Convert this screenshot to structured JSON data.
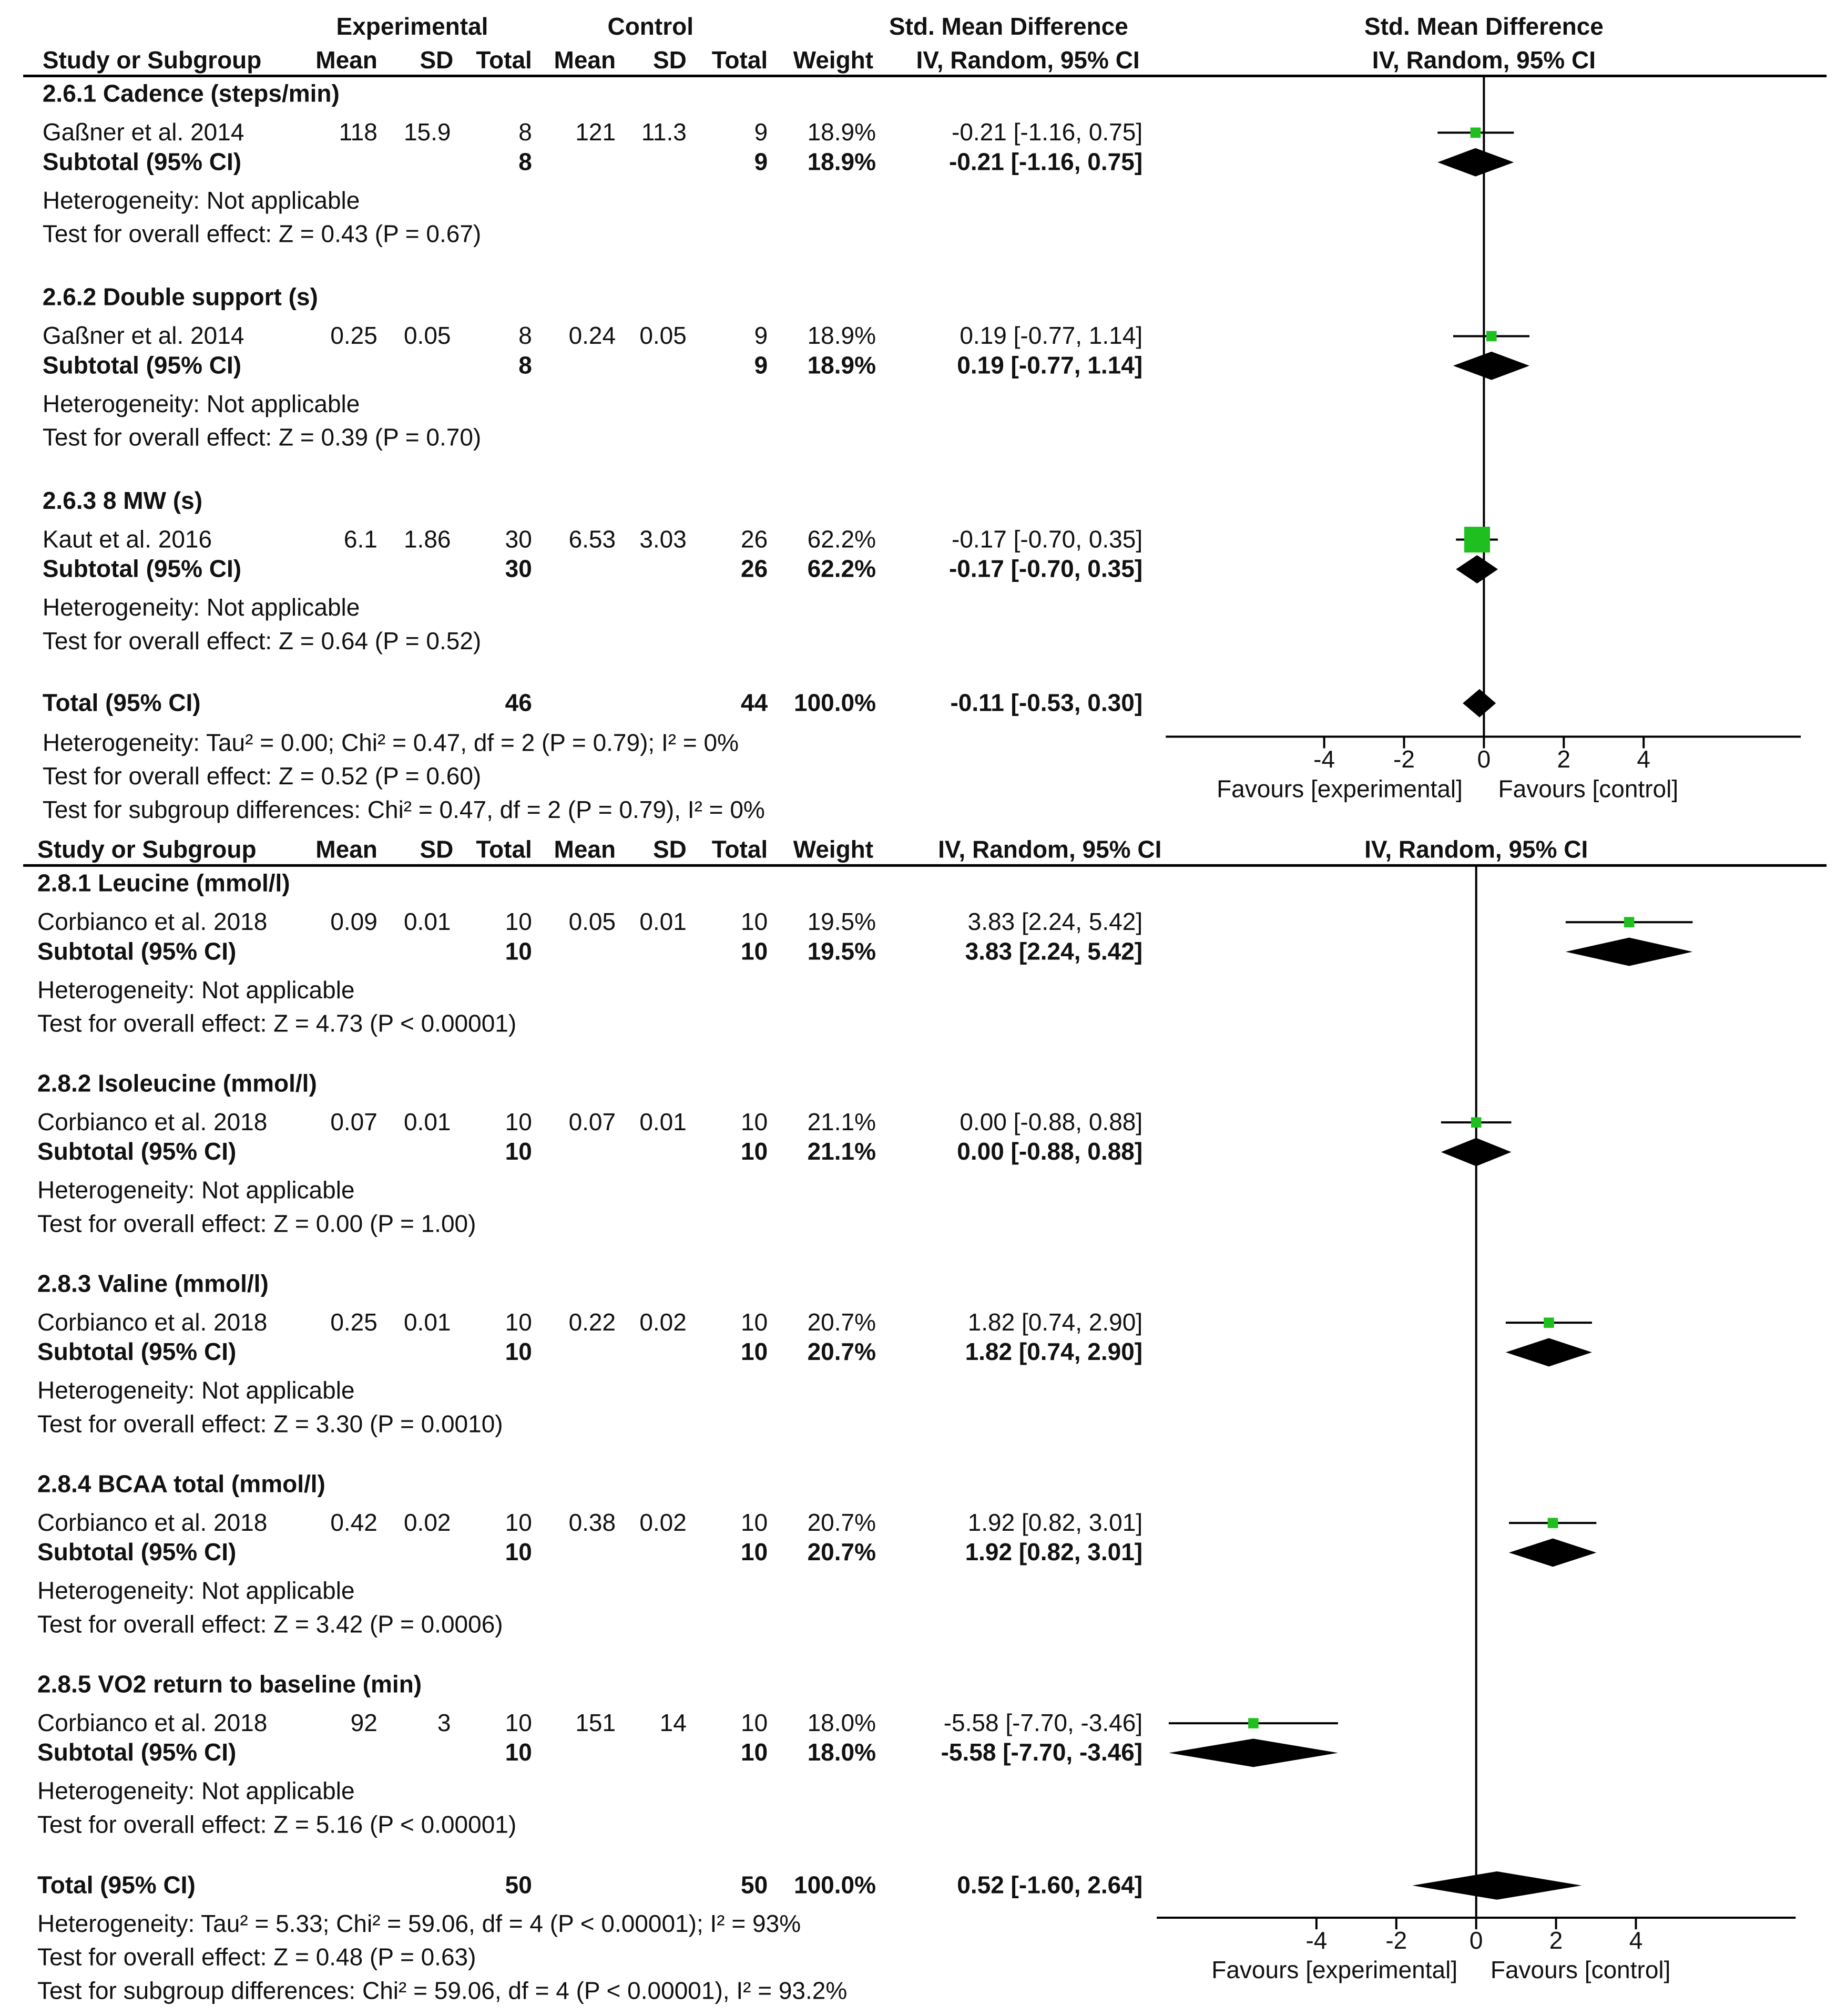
{
  "chart_data": {
    "type": "forest",
    "colors": {
      "study_marker": "#1fbf1f",
      "diamond": "#000000",
      "line": "#000000"
    },
    "panels": [
      {
        "id": "top",
        "super_headers": {
          "experimental": "Experimental",
          "control": "Control",
          "smd": "Std. Mean Difference",
          "plot": "Std. Mean Difference"
        },
        "col_headers": {
          "study": "Study or Subgroup",
          "exp_mean": "Mean",
          "exp_sd": "SD",
          "exp_total": "Total",
          "ctl_mean": "Mean",
          "ctl_sd": "SD",
          "ctl_total": "Total",
          "weight": "Weight",
          "ci": "IV, Random, 95% CI",
          "plot": "IV, Random, 95% CI"
        },
        "subgroups": [
          {
            "title": "2.6.1 Cadence (steps/min)",
            "study": {
              "name": "Gaßner et al. 2014",
              "exp_mean": "118",
              "exp_sd": "15.9",
              "exp_total": "8",
              "ctl_mean": "121",
              "ctl_sd": "11.3",
              "ctl_total": "9",
              "weight": "18.9%",
              "ci_text": "-0.21 [-1.16, 0.75]",
              "est": -0.21,
              "lo": -1.16,
              "hi": 0.75,
              "w": 18.9
            },
            "subtotal": {
              "label": "Subtotal (95% CI)",
              "exp_total": "8",
              "ctl_total": "9",
              "weight": "18.9%",
              "ci_text": "-0.21 [-1.16, 0.75]",
              "est": -0.21,
              "lo": -1.16,
              "hi": 0.75
            },
            "heterogeneity": "Heterogeneity: Not applicable",
            "overall": "Test for overall effect: Z = 0.43 (P = 0.67)"
          },
          {
            "title": "2.6.2 Double support (s)",
            "study": {
              "name": "Gaßner et al. 2014",
              "exp_mean": "0.25",
              "exp_sd": "0.05",
              "exp_total": "8",
              "ctl_mean": "0.24",
              "ctl_sd": "0.05",
              "ctl_total": "9",
              "weight": "18.9%",
              "ci_text": "0.19 [-0.77, 1.14]",
              "est": 0.19,
              "lo": -0.77,
              "hi": 1.14,
              "w": 18.9
            },
            "subtotal": {
              "label": "Subtotal (95% CI)",
              "exp_total": "8",
              "ctl_total": "9",
              "weight": "18.9%",
              "ci_text": "0.19 [-0.77, 1.14]",
              "est": 0.19,
              "lo": -0.77,
              "hi": 1.14
            },
            "heterogeneity": "Heterogeneity: Not applicable",
            "overall": "Test for overall effect: Z = 0.39 (P = 0.70)"
          },
          {
            "title": "2.6.3 8 MW (s)",
            "study": {
              "name": "Kaut et al. 2016",
              "exp_mean": "6.1",
              "exp_sd": "1.86",
              "exp_total": "30",
              "ctl_mean": "6.53",
              "ctl_sd": "3.03",
              "ctl_total": "26",
              "weight": "62.2%",
              "ci_text": "-0.17 [-0.70, 0.35]",
              "est": -0.17,
              "lo": -0.7,
              "hi": 0.35,
              "w": 62.2
            },
            "subtotal": {
              "label": "Subtotal (95% CI)",
              "exp_total": "30",
              "ctl_total": "26",
              "weight": "62.2%",
              "ci_text": "-0.17 [-0.70, 0.35]",
              "est": -0.17,
              "lo": -0.7,
              "hi": 0.35
            },
            "heterogeneity": "Heterogeneity: Not applicable",
            "overall": "Test for overall effect: Z = 0.64 (P = 0.52)"
          }
        ],
        "total": {
          "label": "Total (95% CI)",
          "exp_total": "46",
          "ctl_total": "44",
          "weight": "100.0%",
          "ci_text": "-0.11 [-0.53, 0.30]",
          "est": -0.11,
          "lo": -0.53,
          "hi": 0.3
        },
        "footer": [
          "Heterogeneity: Tau² = 0.00; Chi² = 0.47, df = 2 (P = 0.79); I² = 0%",
          "Test for overall effect: Z = 0.52 (P = 0.60)",
          "Test for subgroup differences: Chi² = 0.47, df = 2 (P = 0.79), I² = 0%"
        ],
        "axis": {
          "ticks": [
            -4,
            -2,
            0,
            2,
            4
          ],
          "tick_labels": [
            "-4",
            "-2",
            "0",
            "2",
            "4"
          ],
          "favours_left": "Favours [experimental]",
          "favours_right": "Favours [control]"
        }
      },
      {
        "id": "bottom",
        "col_headers": {
          "study": "Study or Subgroup",
          "exp_mean": "Mean",
          "exp_sd": "SD",
          "exp_total": "Total",
          "ctl_mean": "Mean",
          "ctl_sd": "SD",
          "ctl_total": "Total",
          "weight": "Weight",
          "ci": "IV, Random, 95% CI",
          "plot": "IV, Random, 95% CI"
        },
        "subgroups": [
          {
            "title": "2.8.1 Leucine (mmol/l)",
            "study": {
              "name": "Corbianco et al. 2018",
              "exp_mean": "0.09",
              "exp_sd": "0.01",
              "exp_total": "10",
              "ctl_mean": "0.05",
              "ctl_sd": "0.01",
              "ctl_total": "10",
              "weight": "19.5%",
              "ci_text": "3.83 [2.24, 5.42]",
              "est": 3.83,
              "lo": 2.24,
              "hi": 5.42,
              "w": 19.5
            },
            "subtotal": {
              "label": "Subtotal (95% CI)",
              "exp_total": "10",
              "ctl_total": "10",
              "weight": "19.5%",
              "ci_text": "3.83 [2.24, 5.42]",
              "est": 3.83,
              "lo": 2.24,
              "hi": 5.42
            },
            "heterogeneity": "Heterogeneity: Not applicable",
            "overall": "Test for overall effect: Z = 4.73 (P < 0.00001)"
          },
          {
            "title": "2.8.2 Isoleucine (mmol/l)",
            "study": {
              "name": "Corbianco et al. 2018",
              "exp_mean": "0.07",
              "exp_sd": "0.01",
              "exp_total": "10",
              "ctl_mean": "0.07",
              "ctl_sd": "0.01",
              "ctl_total": "10",
              "weight": "21.1%",
              "ci_text": "0.00 [-0.88, 0.88]",
              "est": 0.0,
              "lo": -0.88,
              "hi": 0.88,
              "w": 21.1
            },
            "subtotal": {
              "label": "Subtotal (95% CI)",
              "exp_total": "10",
              "ctl_total": "10",
              "weight": "21.1%",
              "ci_text": "0.00 [-0.88, 0.88]",
              "est": 0.0,
              "lo": -0.88,
              "hi": 0.88
            },
            "heterogeneity": "Heterogeneity: Not applicable",
            "overall": "Test for overall effect: Z = 0.00 (P = 1.00)"
          },
          {
            "title": "2.8.3 Valine (mmol/l)",
            "study": {
              "name": "Corbianco et al. 2018",
              "exp_mean": "0.25",
              "exp_sd": "0.01",
              "exp_total": "10",
              "ctl_mean": "0.22",
              "ctl_sd": "0.02",
              "ctl_total": "10",
              "weight": "20.7%",
              "ci_text": "1.82 [0.74, 2.90]",
              "est": 1.82,
              "lo": 0.74,
              "hi": 2.9,
              "w": 20.7
            },
            "subtotal": {
              "label": "Subtotal (95% CI)",
              "exp_total": "10",
              "ctl_total": "10",
              "weight": "20.7%",
              "ci_text": "1.82 [0.74, 2.90]",
              "est": 1.82,
              "lo": 0.74,
              "hi": 2.9
            },
            "heterogeneity": "Heterogeneity: Not applicable",
            "overall": "Test for overall effect: Z = 3.30 (P = 0.0010)"
          },
          {
            "title": "2.8.4 BCAA total (mmol/l)",
            "study": {
              "name": "Corbianco et al. 2018",
              "exp_mean": "0.42",
              "exp_sd": "0.02",
              "exp_total": "10",
              "ctl_mean": "0.38",
              "ctl_sd": "0.02",
              "ctl_total": "10",
              "weight": "20.7%",
              "ci_text": "1.92 [0.82, 3.01]",
              "est": 1.92,
              "lo": 0.82,
              "hi": 3.01,
              "w": 20.7
            },
            "subtotal": {
              "label": "Subtotal (95% CI)",
              "exp_total": "10",
              "ctl_total": "10",
              "weight": "20.7%",
              "ci_text": "1.92 [0.82, 3.01]",
              "est": 1.92,
              "lo": 0.82,
              "hi": 3.01
            },
            "heterogeneity": "Heterogeneity: Not applicable",
            "overall": "Test for overall effect: Z = 3.42 (P = 0.0006)"
          },
          {
            "title": "2.8.5 VO2 return to baseline (min)",
            "study": {
              "name": "Corbianco et al. 2018",
              "exp_mean": "92",
              "exp_sd": "3",
              "exp_total": "10",
              "ctl_mean": "151",
              "ctl_sd": "14",
              "ctl_total": "10",
              "weight": "18.0%",
              "ci_text": "-5.58 [-7.70, -3.46]",
              "est": -5.58,
              "lo": -7.7,
              "hi": -3.46,
              "w": 18.0
            },
            "subtotal": {
              "label": "Subtotal (95% CI)",
              "exp_total": "10",
              "ctl_total": "10",
              "weight": "18.0%",
              "ci_text": "-5.58 [-7.70, -3.46]",
              "est": -5.58,
              "lo": -7.7,
              "hi": -3.46
            },
            "heterogeneity": "Heterogeneity: Not applicable",
            "overall": "Test for overall effect: Z = 5.16 (P < 0.00001)"
          }
        ],
        "total": {
          "label": "Total (95% CI)",
          "exp_total": "50",
          "ctl_total": "50",
          "weight": "100.0%",
          "ci_text": "0.52 [-1.60, 2.64]",
          "est": 0.52,
          "lo": -1.6,
          "hi": 2.64
        },
        "footer": [
          "Heterogeneity: Tau² = 5.33; Chi² = 59.06, df = 4 (P < 0.00001); I² = 93%",
          "Test for overall effect: Z = 0.48 (P = 0.63)",
          "Test for subgroup differences: Chi² = 59.06, df = 4 (P < 0.00001), I² = 93.2%"
        ],
        "axis": {
          "ticks": [
            -4,
            -2,
            0,
            2,
            4
          ],
          "tick_labels": [
            "-4",
            "-2",
            "0",
            "2",
            "4"
          ],
          "favours_left": "Favours [experimental]",
          "favours_right": "Favours [control]"
        }
      }
    ]
  }
}
